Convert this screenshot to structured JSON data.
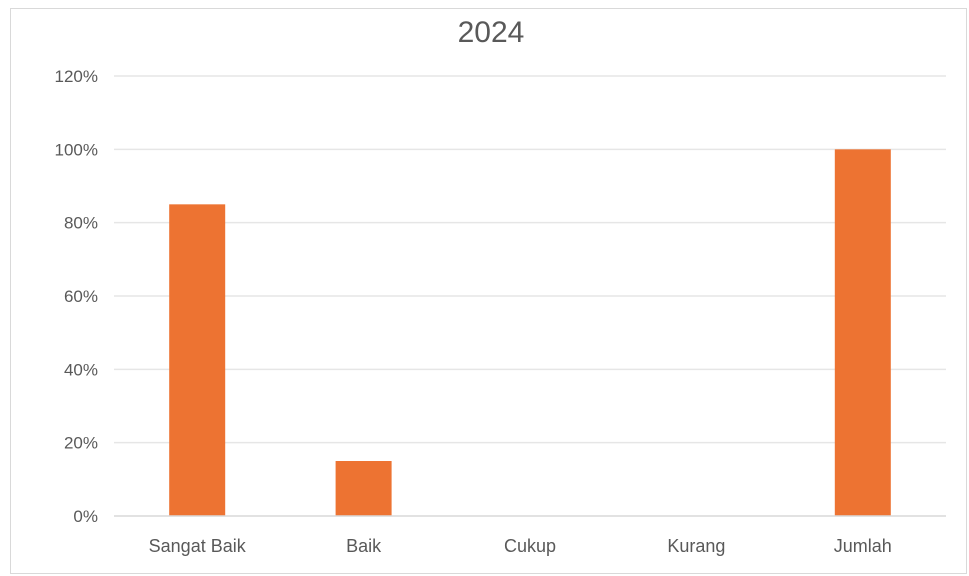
{
  "chart_data": {
    "type": "bar",
    "title": "2024",
    "categories": [
      "Sangat Baik",
      "Baik",
      "Cukup",
      "Kurang",
      "Jumlah"
    ],
    "values": [
      85,
      15,
      0,
      0,
      100
    ],
    "value_format": "percent",
    "ylim": [
      0,
      120
    ],
    "yticks": [
      "0%",
      "20%",
      "40%",
      "60%",
      "80%",
      "100%",
      "120%"
    ],
    "xlabel": "",
    "ylabel": "",
    "grid": true,
    "legend": "none",
    "bar_color": "#ed7332"
  }
}
